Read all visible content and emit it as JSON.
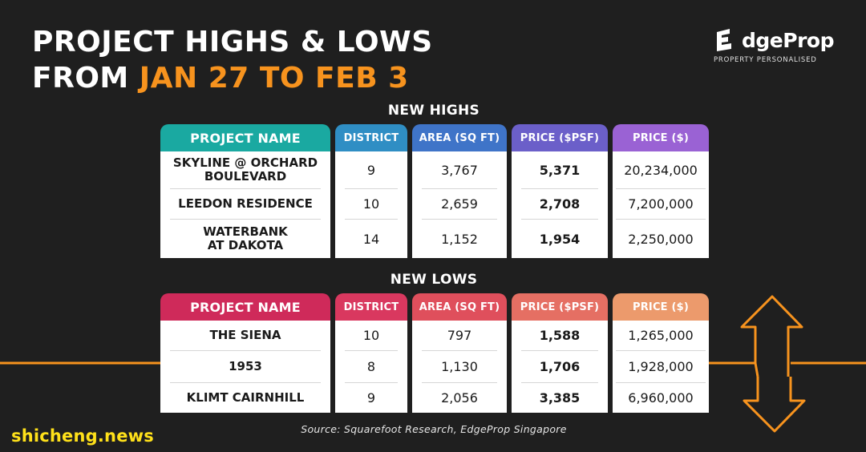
{
  "title": {
    "line1": "PROJECT HIGHS & LOWS",
    "line2_prefix": "FROM ",
    "line2_accent": "JAN 27 TO FEB 3"
  },
  "logo": {
    "wordmark": "dgeProp",
    "tagline": "PROPERTY PERSONALISED",
    "icon": "edgeprop-e-logo"
  },
  "colors": {
    "background": "#1f1f1f",
    "accent_orange": "#f7931e",
    "highs_name": "#1aa9a1",
    "highs_district": "#2f8ec4",
    "highs_area": "#3f74c8",
    "highs_psf": "#6b5fc9",
    "highs_price": "#9a62d4",
    "lows_name": "#cf2a5a",
    "lows_district": "#d9385f",
    "lows_area": "#df4f5c",
    "lows_psf": "#e56f63",
    "lows_price": "#ec9a6c"
  },
  "highs": {
    "heading": "NEW HIGHS",
    "columns": [
      "PROJECT NAME",
      "DISTRICT",
      "AREA (SQ FT)",
      "PRICE ($PSF)",
      "PRICE ($)"
    ],
    "rows": [
      {
        "name": "SKYLINE @ ORCHARD\nBOULEVARD",
        "district": "9",
        "area": "3,767",
        "psf": "5,371",
        "price": "20,234,000"
      },
      {
        "name": "LEEDON RESIDENCE",
        "district": "10",
        "area": "2,659",
        "psf": "2,708",
        "price": "7,200,000"
      },
      {
        "name": "WATERBANK\nAT DAKOTA",
        "district": "14",
        "area": "1,152",
        "psf": "1,954",
        "price": "2,250,000"
      }
    ]
  },
  "lows": {
    "heading": "NEW LOWS",
    "columns": [
      "PROJECT NAME",
      "DISTRICT",
      "AREA (SQ FT)",
      "PRICE ($PSF)",
      "PRICE ($)"
    ],
    "rows": [
      {
        "name": "THE SIENA",
        "district": "10",
        "area": "797",
        "psf": "1,588",
        "price": "1,265,000"
      },
      {
        "name": "1953",
        "district": "8",
        "area": "1,130",
        "psf": "1,706",
        "price": "1,928,000"
      },
      {
        "name": "KLIMT CAIRNHILL",
        "district": "9",
        "area": "2,056",
        "psf": "3,385",
        "price": "6,960,000"
      }
    ]
  },
  "source": "Source: Squarefoot Research, EdgeProp Singapore",
  "watermark": "shicheng.news"
}
